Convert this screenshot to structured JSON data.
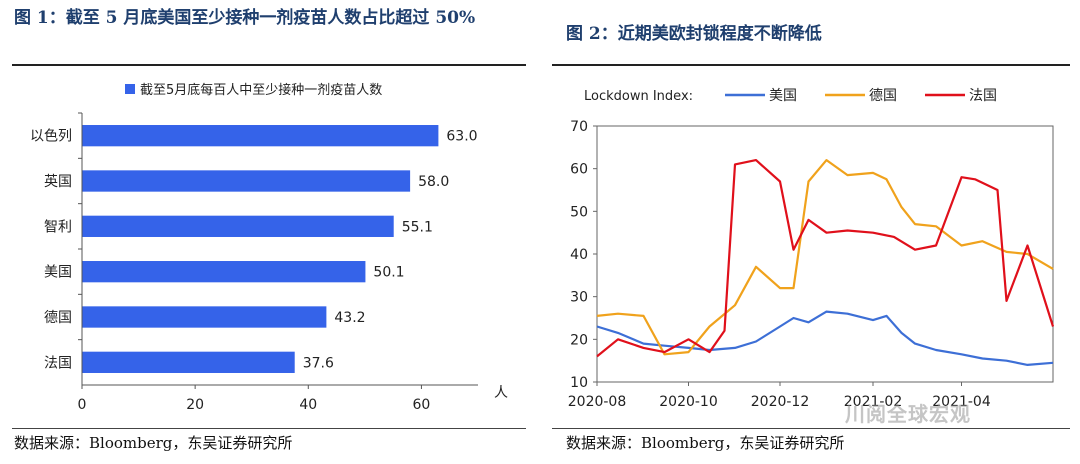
{
  "figure1": {
    "title": "图 1：截至 5 月底美国至少接种一剂疫苗人数占比超过 50%",
    "source": "数据来源：Bloomberg，东吴证券研究所"
  },
  "figure2": {
    "title": "图 2：近期美欧封锁程度不断降低",
    "source": "数据来源：Bloomberg，东吴证券研究所"
  },
  "watermark": "川阅全球宏观",
  "colors": {
    "bar": "#3563e9",
    "us": "#3d6fd6",
    "de": "#f0a21c",
    "fr": "#e0101b",
    "title": "#1f3f6e"
  },
  "chart_data": [
    {
      "type": "bar",
      "orientation": "horizontal",
      "legend": "截至5月底每百人中至少接种一剂疫苗人数",
      "legend_position": "top",
      "categories": [
        "以色列",
        "英国",
        "智利",
        "美国",
        "德国",
        "法国"
      ],
      "values": [
        63.0,
        58.0,
        55.1,
        50.1,
        43.2,
        37.6
      ],
      "value_labels": [
        "63.0",
        "58.0",
        "55.1",
        "50.1",
        "43.2",
        "37.6"
      ],
      "xlabel": "人",
      "xlim": [
        0,
        70
      ],
      "xticks": [
        0,
        20,
        40,
        60
      ],
      "grid": false
    },
    {
      "type": "line",
      "legend_title": "Lockdown Index:",
      "legend_position": "top",
      "xlabel": "",
      "ylabel": "",
      "ylim": [
        10,
        70
      ],
      "yticks": [
        10,
        20,
        30,
        40,
        50,
        60,
        70
      ],
      "xticks": [
        "2020-08",
        "2020-10",
        "2020-12",
        "2021-02",
        "2021-04"
      ],
      "xrange": [
        "2020-08",
        "2021-06"
      ],
      "grid": false,
      "series": [
        {
          "name": "美国",
          "x": [
            "2020-08",
            "2020-08-15",
            "2020-09",
            "2020-09-15",
            "2020-10",
            "2020-10-15",
            "2020-11",
            "2020-11-15",
            "2020-12",
            "2020-12-10",
            "2020-12-20",
            "2021-01",
            "2021-01-15",
            "2021-02",
            "2021-02-10",
            "2021-02-20",
            "2021-03",
            "2021-03-15",
            "2021-04",
            "2021-04-15",
            "2021-05",
            "2021-05-15",
            "2021-06"
          ],
          "values": [
            23,
            21.5,
            19,
            18.5,
            18,
            17.5,
            18,
            19.5,
            23,
            25,
            24,
            26.5,
            26,
            24.5,
            25.5,
            21.5,
            19,
            17.5,
            16.5,
            15.5,
            15,
            14,
            14.5
          ]
        },
        {
          "name": "德国",
          "x": [
            "2020-08",
            "2020-08-15",
            "2020-09",
            "2020-09-15",
            "2020-10",
            "2020-10-15",
            "2020-11",
            "2020-11-15",
            "2020-12",
            "2020-12-10",
            "2020-12-20",
            "2021-01",
            "2021-01-15",
            "2021-02",
            "2021-02-10",
            "2021-02-20",
            "2021-03",
            "2021-03-15",
            "2021-04",
            "2021-04-15",
            "2021-05",
            "2021-05-15",
            "2021-06"
          ],
          "values": [
            25.5,
            26,
            25.5,
            16.5,
            17,
            23,
            28,
            37,
            32,
            32,
            57,
            62,
            58.5,
            59,
            57.5,
            51,
            47,
            46.5,
            42,
            43,
            40.5,
            40,
            36.5
          ]
        },
        {
          "name": "法国",
          "x": [
            "2020-08",
            "2020-08-15",
            "2020-09",
            "2020-09-15",
            "2020-10",
            "2020-10-15",
            "2020-10-25",
            "2020-11",
            "2020-11-15",
            "2020-12",
            "2020-12-10",
            "2020-12-20",
            "2021-01",
            "2021-01-15",
            "2021-02",
            "2021-02-15",
            "2021-03",
            "2021-03-15",
            "2021-04",
            "2021-04-10",
            "2021-04-25",
            "2021-05",
            "2021-05-15",
            "2021-06"
          ],
          "values": [
            16,
            20,
            18,
            17,
            20,
            17,
            22,
            61,
            62,
            57,
            41,
            48,
            45,
            45.5,
            45,
            44,
            41,
            42,
            58,
            57.5,
            55,
            29,
            42,
            23
          ]
        }
      ]
    }
  ]
}
